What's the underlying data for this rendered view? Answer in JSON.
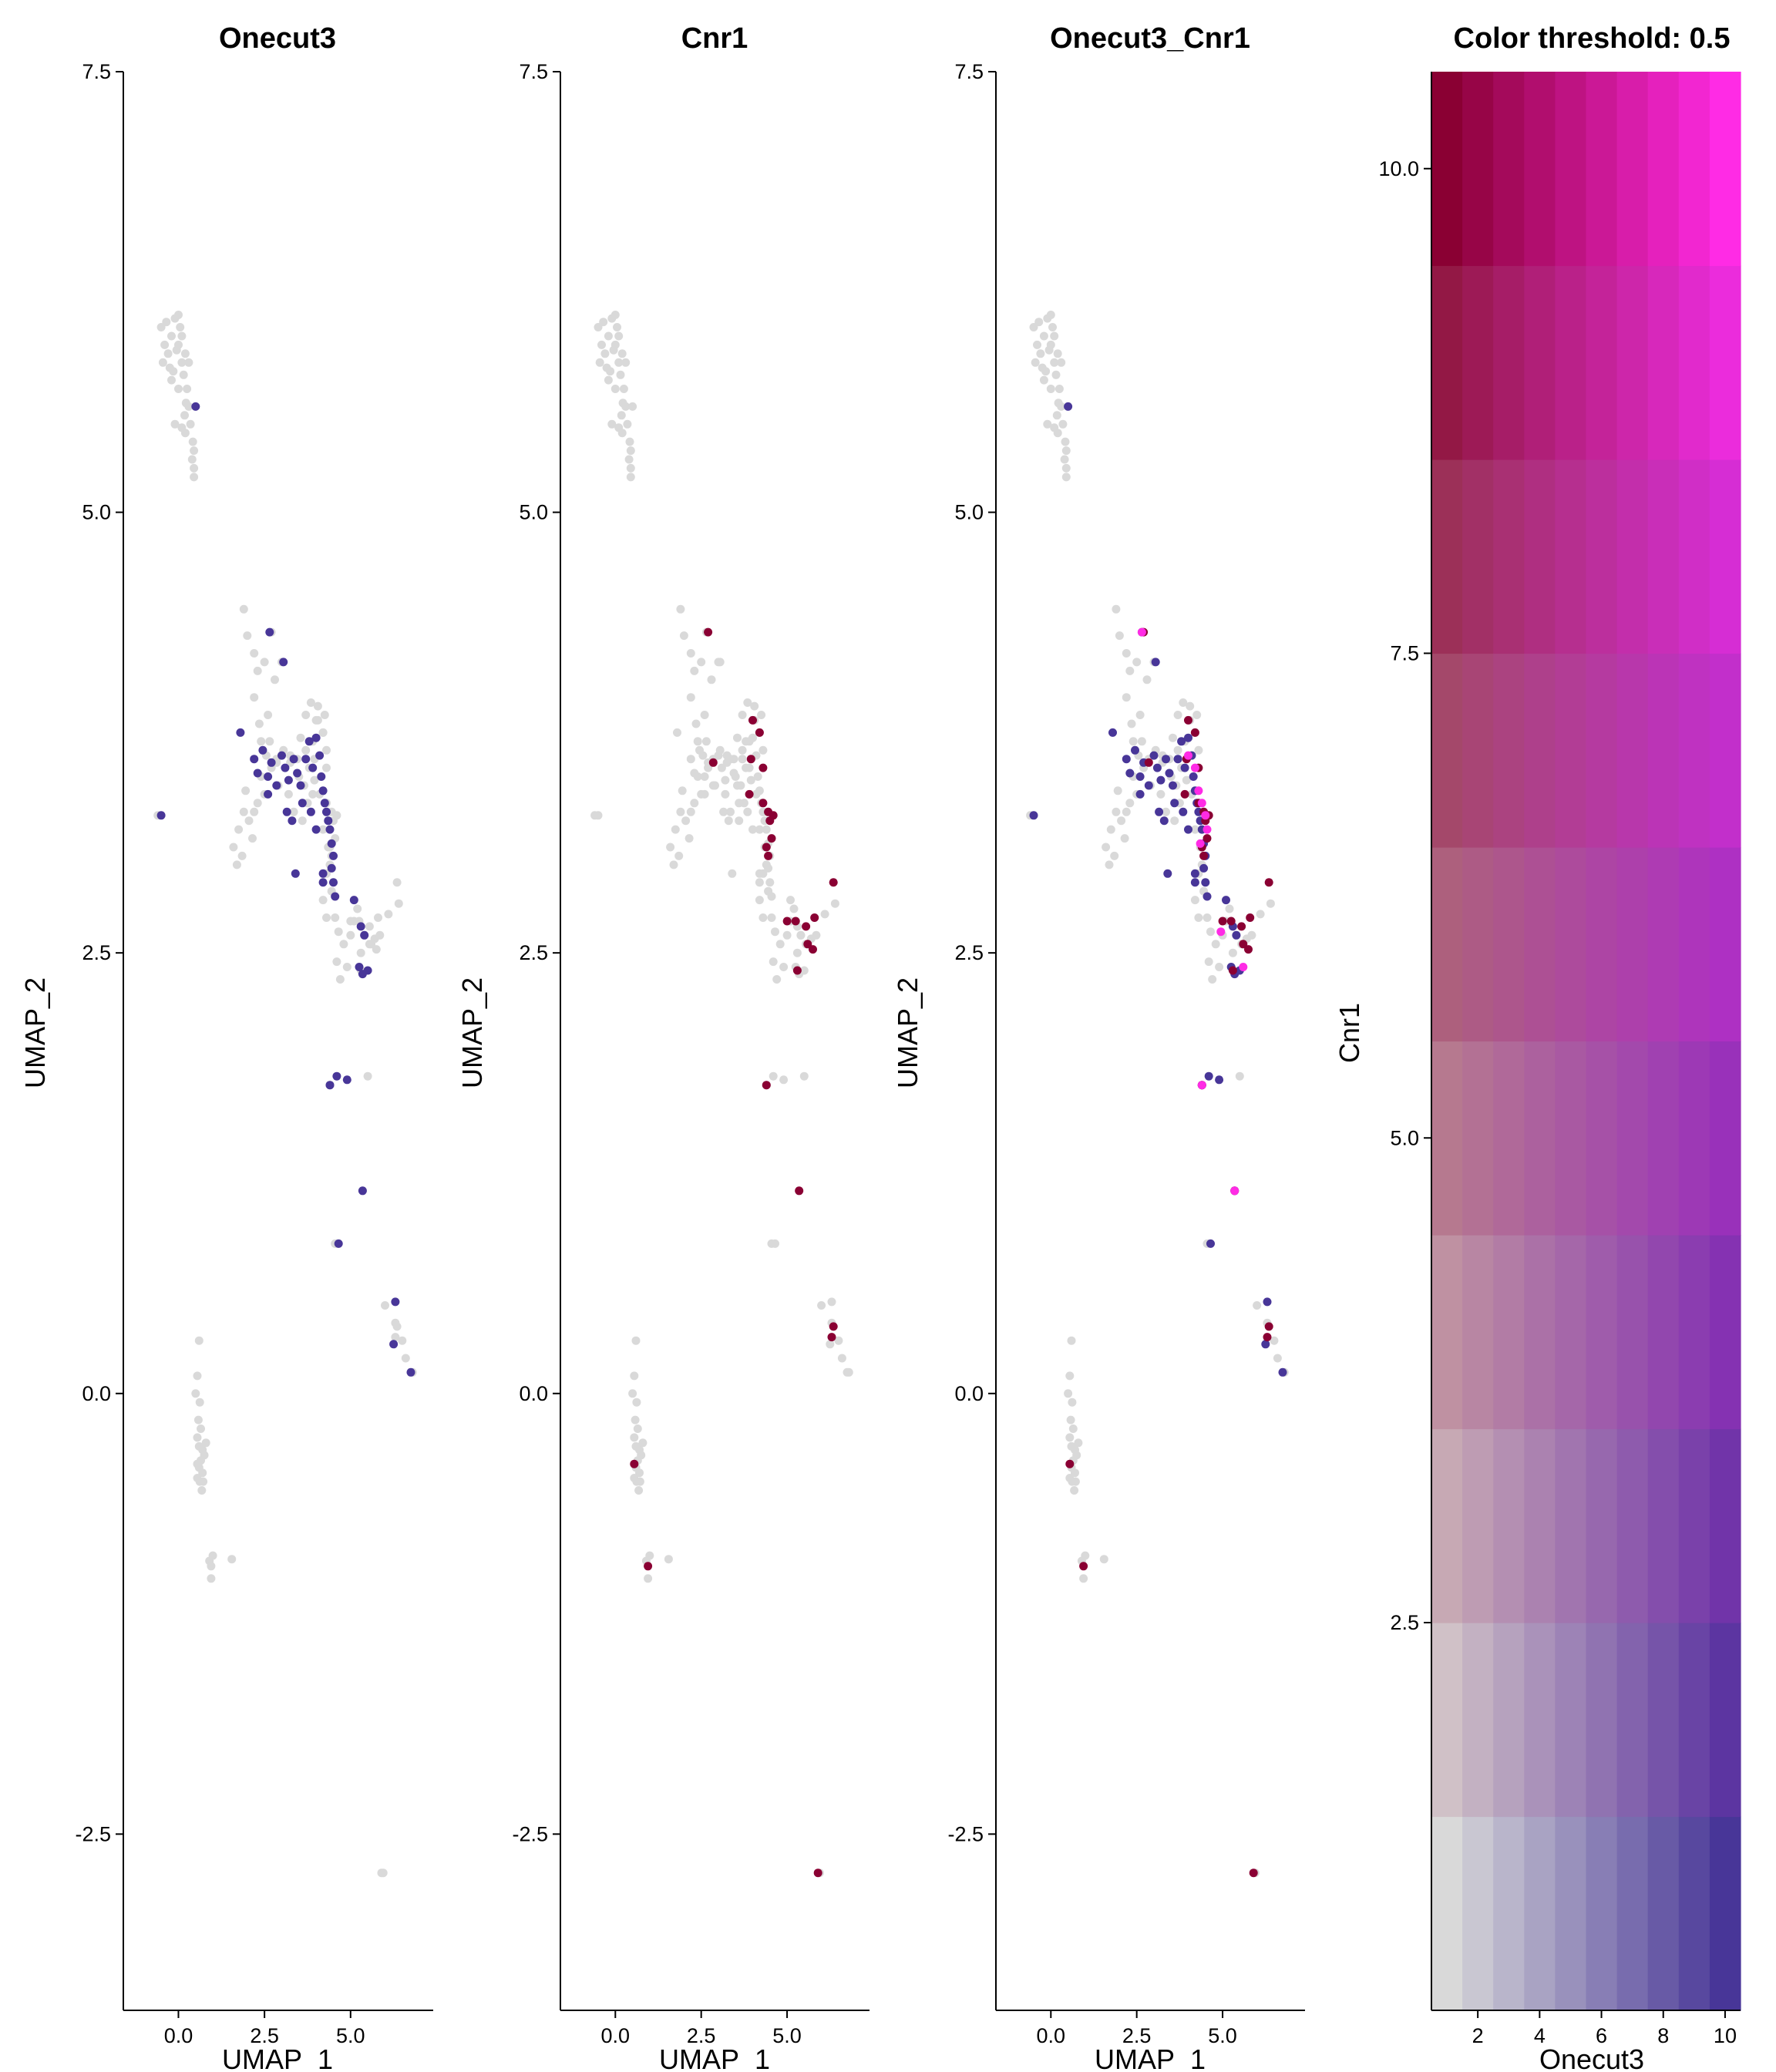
{
  "chart_data": [
    {
      "type": "scatter",
      "title": "Onecut3",
      "xlabel": "UMAP_1",
      "ylabel": "UMAP_2",
      "xlim": [
        -1.6,
        7.4
      ],
      "ylim": [
        -3.5,
        7.5
      ],
      "xticks": [
        "0.0",
        "2.5",
        "5.0"
      ],
      "yticks": [
        "-2.5",
        "0.0",
        "2.5",
        "5.0",
        "7.5"
      ],
      "grid": false,
      "colors": {
        "low": "#D9D9D9",
        "high": "#483698"
      }
    },
    {
      "type": "scatter",
      "title": "Cnr1",
      "xlabel": "UMAP_1",
      "ylabel": "UMAP_2",
      "xlim": [
        -1.6,
        7.4
      ],
      "ylim": [
        -3.5,
        7.5
      ],
      "xticks": [
        "0.0",
        "2.5",
        "5.0"
      ],
      "yticks": [
        "-2.5",
        "0.0",
        "2.5",
        "5.0",
        "7.5"
      ],
      "grid": false,
      "colors": {
        "low": "#D9D9D9",
        "high": "#8A0033"
      }
    },
    {
      "type": "scatter",
      "title": "Onecut3_Cnr1",
      "xlabel": "UMAP_1",
      "ylabel": "UMAP_2",
      "xlim": [
        -1.6,
        7.4
      ],
      "ylim": [
        -3.5,
        7.5
      ],
      "xticks": [
        "0.0",
        "2.5",
        "5.0"
      ],
      "yticks": [
        "-2.5",
        "0.0",
        "2.5",
        "5.0",
        "7.5"
      ],
      "grid": false,
      "colors": {
        "low": "#D9D9D9",
        "onecut3": "#483698",
        "cnr1": "#8A0033",
        "both": "#FF2BE5"
      }
    },
    {
      "type": "heatmap",
      "title": "Color threshold: 0.5",
      "xlabel": "Onecut3",
      "ylabel": "Cnr1",
      "x": [
        1,
        2,
        3,
        4,
        5,
        6,
        7,
        8,
        9,
        10
      ],
      "y": [
        1,
        2,
        3,
        4,
        5,
        6,
        7,
        8,
        9,
        10
      ],
      "xlim": [
        0.5,
        10.5
      ],
      "ylim": [
        0.5,
        10.5
      ],
      "xticks": [
        "2",
        "4",
        "6",
        "8",
        "10"
      ],
      "yticks": [
        "2.5",
        "5.0",
        "7.5",
        "10.0"
      ],
      "corner_colors": {
        "low_low": "#D9D9D9",
        "high_onecut3": "#483698",
        "high_cnr1": "#8A0033",
        "high_both": "#FF2BE5"
      }
    }
  ],
  "points": {
    "gray": [
      [
        -0.5,
        6.05
      ],
      [
        -0.4,
        5.95
      ],
      [
        -0.3,
        5.9
      ],
      [
        -0.2,
        6.0
      ],
      [
        -0.1,
        6.1
      ],
      [
        0.0,
        5.95
      ],
      [
        0.1,
        5.85
      ],
      [
        0.2,
        5.9
      ],
      [
        -0.35,
        6.08
      ],
      [
        -0.25,
        5.82
      ],
      [
        0.05,
        6.05
      ],
      [
        0.15,
        5.78
      ],
      [
        0.25,
        5.7
      ],
      [
        0.3,
        5.6
      ],
      [
        0.35,
        5.5
      ],
      [
        0.2,
        5.45
      ],
      [
        -0.15,
        5.8
      ],
      [
        0.0,
        5.7
      ],
      [
        -0.45,
        5.85
      ],
      [
        0.1,
        6.0
      ],
      [
        0.3,
        5.85
      ],
      [
        -0.05,
        5.92
      ],
      [
        0.22,
        5.62
      ],
      [
        0.42,
        5.4
      ],
      [
        0.45,
        5.35
      ],
      [
        -0.1,
        5.5
      ],
      [
        0.1,
        5.48
      ],
      [
        0.4,
        5.3
      ],
      [
        0.45,
        5.25
      ],
      [
        0.45,
        5.2
      ],
      [
        0.0,
        6.12
      ],
      [
        -0.2,
        5.75
      ],
      [
        0.18,
        5.55
      ],
      [
        1.9,
        4.45
      ],
      [
        2.0,
        4.3
      ],
      [
        2.2,
        4.2
      ],
      [
        2.3,
        4.1
      ],
      [
        2.5,
        4.15
      ],
      [
        2.2,
        3.95
      ],
      [
        2.35,
        3.8
      ],
      [
        2.6,
        3.85
      ],
      [
        2.8,
        4.05
      ],
      [
        3.0,
        4.15
      ],
      [
        2.4,
        3.7
      ],
      [
        2.55,
        3.62
      ],
      [
        2.7,
        3.55
      ],
      [
        2.85,
        3.6
      ],
      [
        3.05,
        3.65
      ],
      [
        3.25,
        3.58
      ],
      [
        3.45,
        3.6
      ],
      [
        3.55,
        3.72
      ],
      [
        3.7,
        3.65
      ],
      [
        3.9,
        3.7
      ],
      [
        4.05,
        3.82
      ],
      [
        4.2,
        3.75
      ],
      [
        4.3,
        3.65
      ],
      [
        3.7,
        3.85
      ],
      [
        3.85,
        3.92
      ],
      [
        4.05,
        3.9
      ],
      [
        4.25,
        3.85
      ],
      [
        3.5,
        3.5
      ],
      [
        3.65,
        3.45
      ],
      [
        3.8,
        3.55
      ],
      [
        3.95,
        3.48
      ],
      [
        4.1,
        3.4
      ],
      [
        2.5,
        3.4
      ],
      [
        2.3,
        3.35
      ],
      [
        2.2,
        3.3
      ],
      [
        2.05,
        3.25
      ],
      [
        1.9,
        3.3
      ],
      [
        1.95,
        3.42
      ],
      [
        1.75,
        3.2
      ],
      [
        1.6,
        3.1
      ],
      [
        1.7,
        3.0
      ],
      [
        1.85,
        3.05
      ],
      [
        2.15,
        3.15
      ],
      [
        2.4,
        3.5
      ],
      [
        2.9,
        3.45
      ],
      [
        3.2,
        3.4
      ],
      [
        3.35,
        3.3
      ],
      [
        3.6,
        3.25
      ],
      [
        4.2,
        3.2
      ],
      [
        4.35,
        3.1
      ],
      [
        4.4,
        3.0
      ],
      [
        4.3,
        2.95
      ],
      [
        4.45,
        2.85
      ],
      [
        4.2,
        2.8
      ],
      [
        4.3,
        2.7
      ],
      [
        4.55,
        2.7
      ],
      [
        4.65,
        2.62
      ],
      [
        4.8,
        2.55
      ],
      [
        5.0,
        2.6
      ],
      [
        5.1,
        2.68
      ],
      [
        5.2,
        2.75
      ],
      [
        5.4,
        2.6
      ],
      [
        5.55,
        2.55
      ],
      [
        5.7,
        2.58
      ],
      [
        5.85,
        2.6
      ],
      [
        6.1,
        2.72
      ],
      [
        6.4,
        2.78
      ],
      [
        5.3,
        2.5
      ],
      [
        4.6,
        2.45
      ],
      [
        4.7,
        2.35
      ],
      [
        4.9,
        2.42
      ],
      [
        5.5,
        1.8
      ],
      [
        4.4,
        1.75
      ],
      [
        4.55,
        0.85
      ],
      [
        6.0,
        0.5
      ],
      [
        6.3,
        0.4
      ],
      [
        6.5,
        0.3
      ],
      [
        6.6,
        0.2
      ],
      [
        6.8,
        0.12
      ],
      [
        0.6,
        0.3
      ],
      [
        0.55,
        0.1
      ],
      [
        0.5,
        0.0
      ],
      [
        0.62,
        -0.05
      ],
      [
        0.58,
        -0.15
      ],
      [
        0.65,
        -0.2
      ],
      [
        0.55,
        -0.25
      ],
      [
        0.6,
        -0.3
      ],
      [
        0.7,
        -0.32
      ],
      [
        0.65,
        -0.38
      ],
      [
        0.6,
        -0.42
      ],
      [
        0.75,
        -0.35
      ],
      [
        0.8,
        -0.28
      ],
      [
        0.7,
        -0.45
      ],
      [
        0.62,
        -0.5
      ],
      [
        0.55,
        -0.48
      ],
      [
        0.72,
        -0.5
      ],
      [
        0.68,
        -0.55
      ],
      [
        0.9,
        -0.95
      ],
      [
        1.0,
        -0.92
      ],
      [
        1.55,
        -0.94
      ],
      [
        0.95,
        -1.05
      ],
      [
        -0.6,
        3.28
      ],
      [
        5.95,
        -2.72
      ],
      [
        3.25,
        3.62
      ],
      [
        3.75,
        3.35
      ],
      [
        2.65,
        3.7
      ]
    ],
    "onecut3": [
      [
        0.5,
        5.6
      ],
      [
        -0.5,
        3.28
      ],
      [
        2.65,
        4.32
      ],
      [
        3.05,
        4.15
      ],
      [
        1.8,
        3.75
      ],
      [
        2.2,
        3.6
      ],
      [
        2.3,
        3.52
      ],
      [
        2.45,
        3.65
      ],
      [
        2.6,
        3.5
      ],
      [
        2.7,
        3.58
      ],
      [
        2.85,
        3.45
      ],
      [
        3.0,
        3.62
      ],
      [
        3.1,
        3.55
      ],
      [
        3.2,
        3.48
      ],
      [
        3.35,
        3.6
      ],
      [
        3.45,
        3.52
      ],
      [
        3.55,
        3.45
      ],
      [
        3.7,
        3.6
      ],
      [
        3.8,
        3.7
      ],
      [
        3.9,
        3.55
      ],
      [
        4.0,
        3.72
      ],
      [
        4.1,
        3.62
      ],
      [
        4.15,
        3.5
      ],
      [
        4.2,
        3.42
      ],
      [
        4.25,
        3.35
      ],
      [
        4.3,
        3.3
      ],
      [
        4.35,
        3.25
      ],
      [
        4.4,
        3.2
      ],
      [
        4.45,
        3.12
      ],
      [
        4.5,
        3.05
      ],
      [
        4.45,
        2.98
      ],
      [
        4.5,
        2.9
      ],
      [
        4.55,
        2.82
      ],
      [
        4.2,
        2.95
      ],
      [
        4.0,
        3.2
      ],
      [
        3.85,
        3.3
      ],
      [
        3.6,
        3.35
      ],
      [
        3.3,
        3.25
      ],
      [
        3.15,
        3.3
      ],
      [
        2.6,
        3.4
      ],
      [
        3.4,
        2.95
      ],
      [
        4.2,
        2.9
      ],
      [
        5.1,
        2.8
      ],
      [
        5.3,
        2.65
      ],
      [
        5.4,
        2.6
      ],
      [
        5.25,
        2.42
      ],
      [
        5.35,
        2.38
      ],
      [
        5.5,
        2.4
      ],
      [
        4.6,
        1.8
      ],
      [
        4.4,
        1.75
      ],
      [
        4.9,
        1.78
      ],
      [
        5.35,
        1.15
      ],
      [
        4.65,
        0.85
      ],
      [
        6.3,
        0.52
      ],
      [
        6.25,
        0.28
      ],
      [
        6.75,
        0.12
      ]
    ],
    "cnr1": [
      [
        2.7,
        4.32
      ],
      [
        4.0,
        3.82
      ],
      [
        4.2,
        3.75
      ],
      [
        3.95,
        3.6
      ],
      [
        4.3,
        3.55
      ],
      [
        2.85,
        3.58
      ],
      [
        3.9,
        3.4
      ],
      [
        4.3,
        3.35
      ],
      [
        4.45,
        3.3
      ],
      [
        4.5,
        3.25
      ],
      [
        4.6,
        3.28
      ],
      [
        4.55,
        3.15
      ],
      [
        4.4,
        3.1
      ],
      [
        4.45,
        3.05
      ],
      [
        6.35,
        2.9
      ],
      [
        5.0,
        2.68
      ],
      [
        5.25,
        2.68
      ],
      [
        5.55,
        2.65
      ],
      [
        5.8,
        2.7
      ],
      [
        5.6,
        2.55
      ],
      [
        5.75,
        2.52
      ],
      [
        5.3,
        2.4
      ],
      [
        4.4,
        1.75
      ],
      [
        5.35,
        1.15
      ],
      [
        6.3,
        0.32
      ],
      [
        6.35,
        0.38
      ],
      [
        0.55,
        -0.4
      ],
      [
        0.95,
        -0.98
      ],
      [
        5.9,
        -2.72
      ]
    ],
    "both": [
      [
        2.65,
        4.32
      ],
      [
        4.0,
        3.62
      ],
      [
        4.2,
        3.55
      ],
      [
        4.3,
        3.42
      ],
      [
        4.4,
        3.35
      ],
      [
        4.5,
        3.28
      ],
      [
        4.55,
        3.2
      ],
      [
        4.35,
        3.12
      ],
      [
        5.6,
        2.42
      ],
      [
        4.4,
        1.75
      ],
      [
        5.35,
        1.15
      ],
      [
        4.95,
        2.62
      ]
    ]
  }
}
